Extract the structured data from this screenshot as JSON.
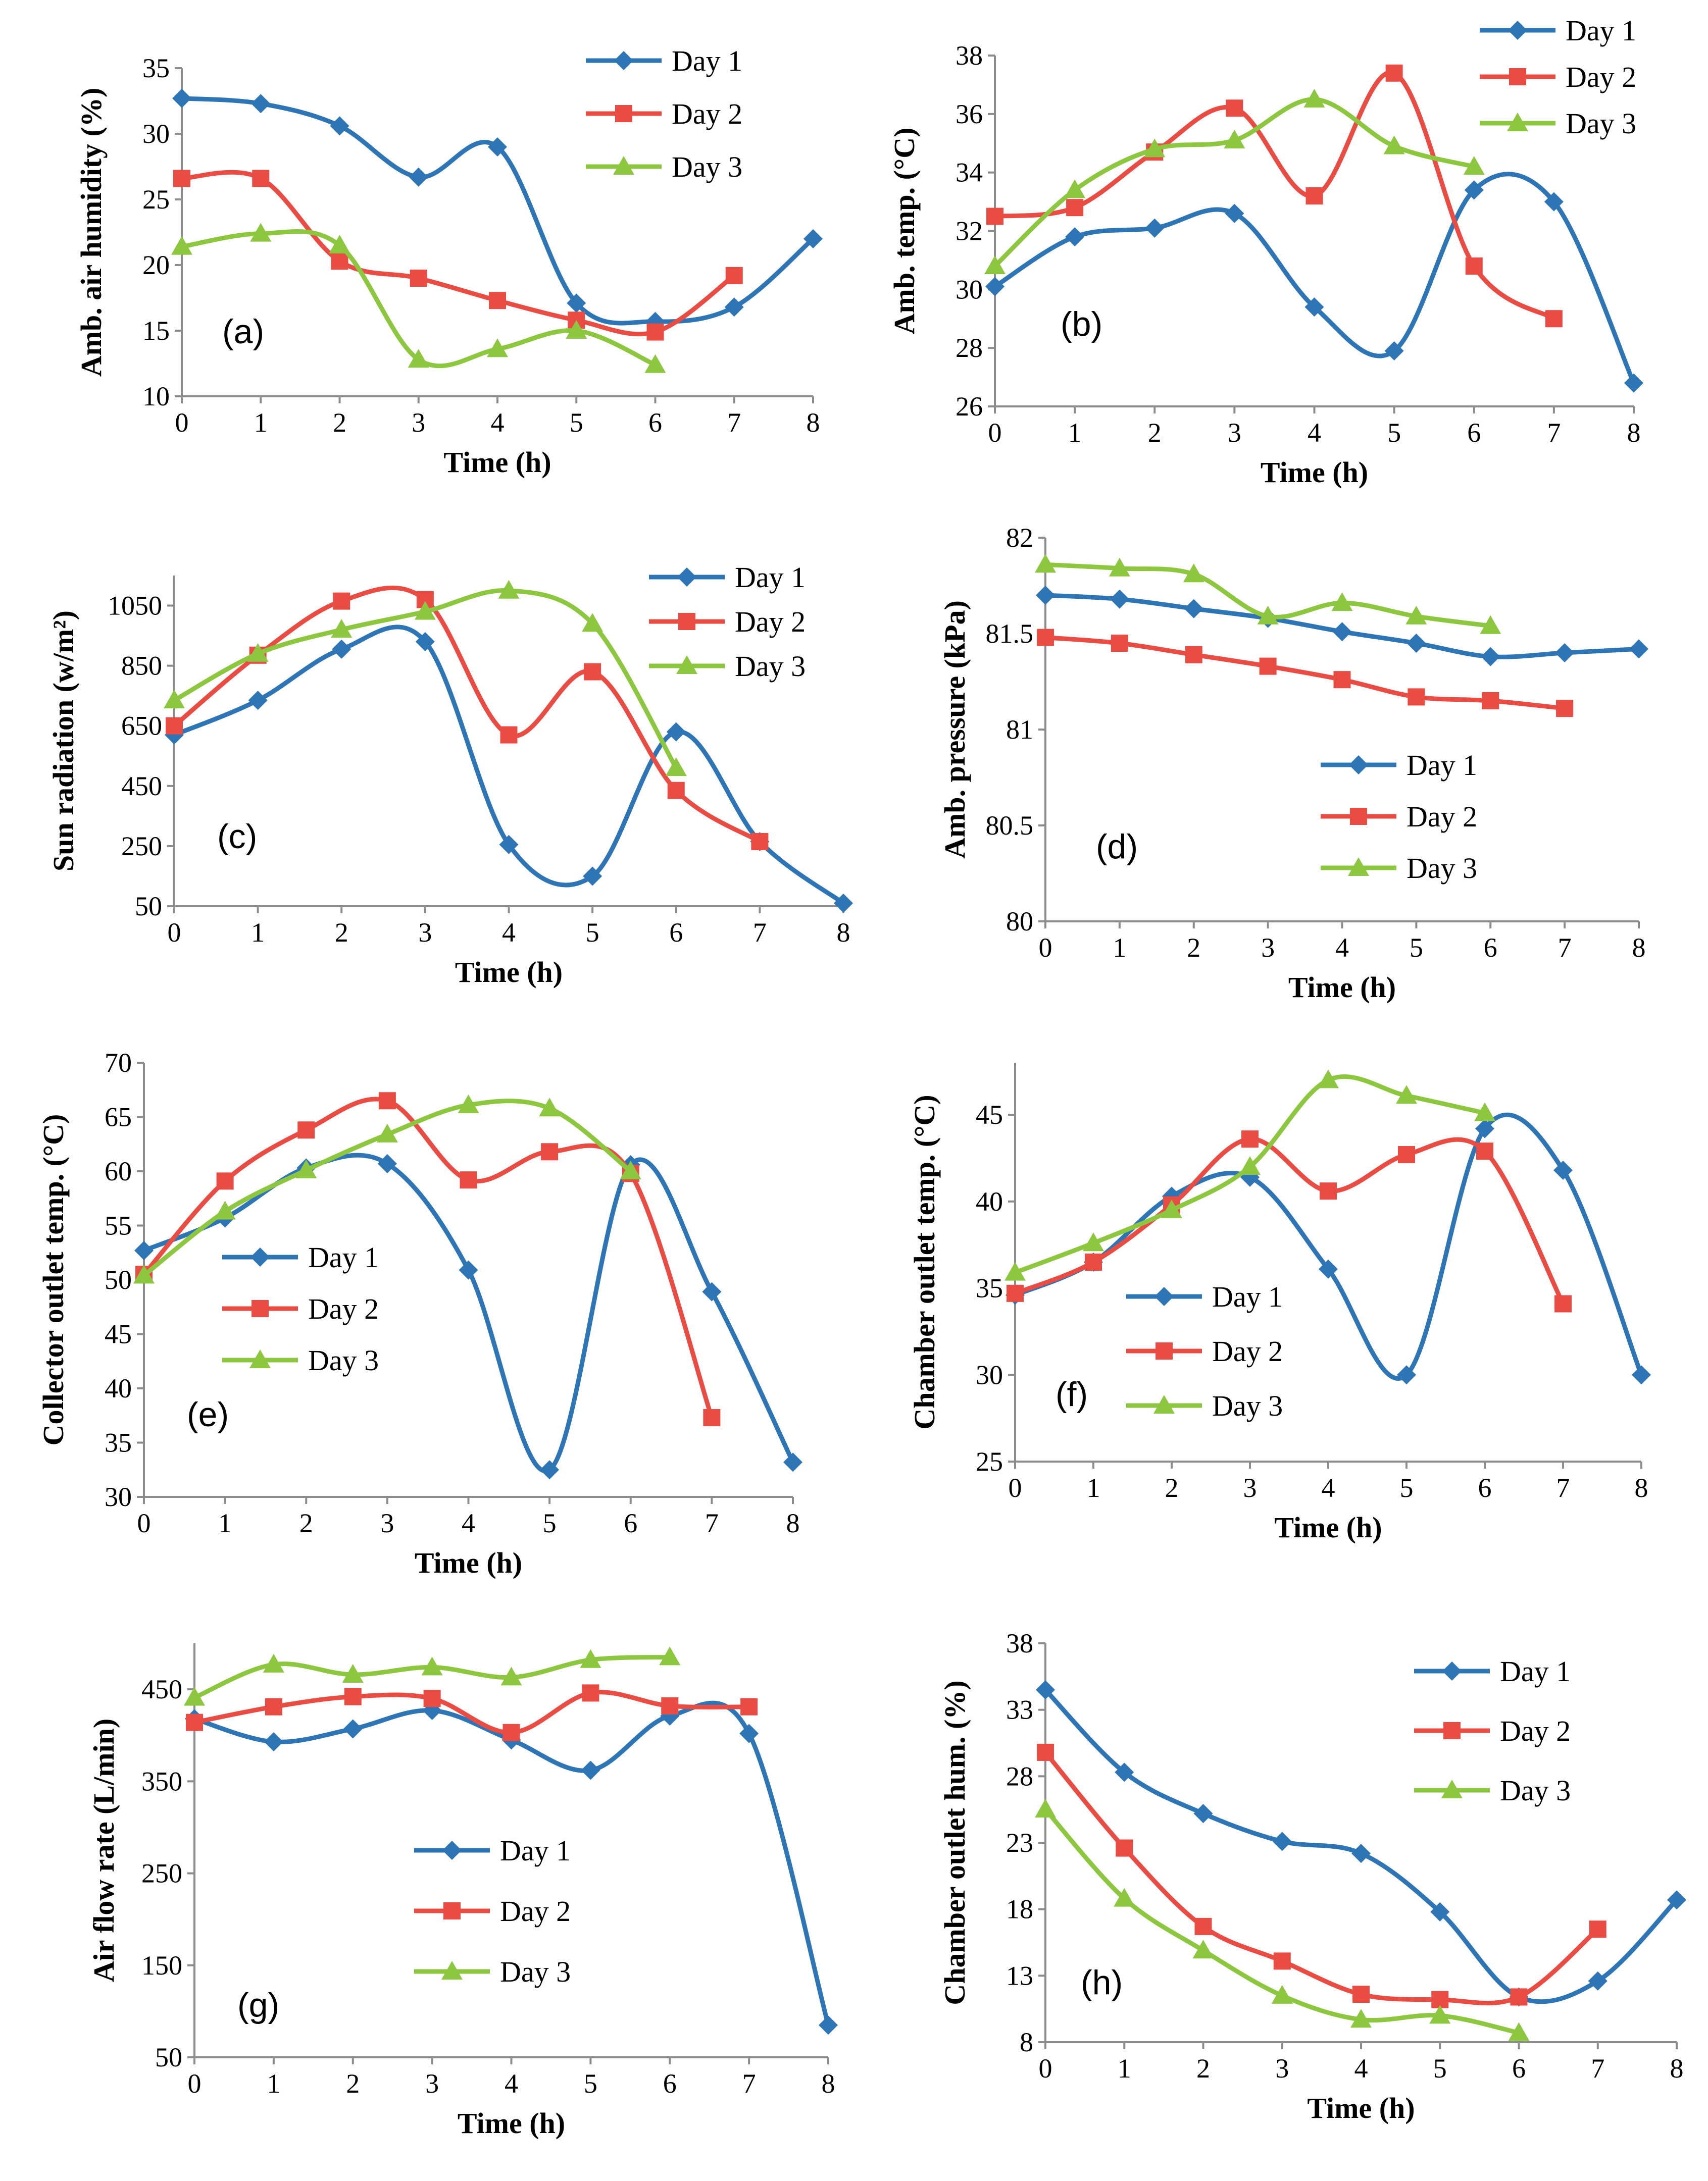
{
  "figure": {
    "series_names": [
      "Day 1",
      "Day 2",
      "Day 3"
    ],
    "colors": {
      "Day 1": "#2e75b6",
      "Day 2": "#e84c43",
      "Day 3": "#8dc63f"
    },
    "markers": {
      "Day 1": "diamond",
      "Day 2": "square",
      "Day 3": "triangle"
    }
  },
  "chart_data": [
    {
      "id": "a",
      "type": "line",
      "panel_label": "(a)",
      "xlabel": "Time (h)",
      "ylabel": "Amb. air humidity (%)",
      "xlim": [
        0,
        8
      ],
      "ylim": [
        10,
        35
      ],
      "xticks": [
        0,
        1,
        2,
        3,
        4,
        5,
        6,
        7,
        8
      ],
      "yticks": [
        10,
        15,
        20,
        25,
        30,
        35
      ],
      "ytick_labels": [
        "10",
        "15",
        "20",
        "25",
        "30",
        "35"
      ],
      "legend": "top-right",
      "series": [
        {
          "name": "Day 1",
          "x": [
            0,
            1,
            2,
            3,
            4,
            5,
            6,
            7,
            8
          ],
          "values": [
            32.7,
            32.3,
            30.6,
            26.7,
            29.0,
            17.1,
            15.7,
            16.8,
            22.0
          ]
        },
        {
          "name": "Day 2",
          "x": [
            0,
            1,
            2,
            3,
            4,
            5,
            6,
            7
          ],
          "values": [
            26.6,
            26.6,
            20.3,
            19.0,
            17.3,
            15.8,
            14.9,
            19.2
          ]
        },
        {
          "name": "Day 3",
          "x": [
            0,
            1,
            2,
            3,
            4,
            5,
            6
          ],
          "values": [
            21.4,
            22.4,
            21.5,
            12.8,
            13.6,
            15.0,
            12.4
          ]
        }
      ]
    },
    {
      "id": "b",
      "type": "line",
      "panel_label": "(b)",
      "xlabel": "Time (h)",
      "ylabel": "Amb. temp. (°C)",
      "xlim": [
        0,
        8
      ],
      "ylim": [
        26,
        38
      ],
      "xticks": [
        0,
        1,
        2,
        3,
        4,
        5,
        6,
        7,
        8
      ],
      "yticks": [
        26,
        28,
        30,
        32,
        34,
        36,
        38
      ],
      "ytick_labels": [
        "26",
        "28",
        "30",
        "32",
        "34",
        "36",
        "38"
      ],
      "legend": "top-right",
      "series": [
        {
          "name": "Day 1",
          "x": [
            0,
            1,
            2,
            3,
            4,
            5,
            6,
            7,
            8
          ],
          "values": [
            30.1,
            31.8,
            32.1,
            32.6,
            29.4,
            27.9,
            33.4,
            33.0,
            26.8
          ]
        },
        {
          "name": "Day 2",
          "x": [
            0,
            1,
            2,
            3,
            4,
            5,
            6,
            7
          ],
          "values": [
            32.5,
            32.8,
            34.7,
            36.2,
            33.2,
            37.4,
            30.8,
            29.0
          ]
        },
        {
          "name": "Day 3",
          "x": [
            0,
            1,
            2,
            3,
            4,
            5,
            6
          ],
          "values": [
            30.8,
            33.4,
            34.8,
            35.1,
            36.5,
            34.9,
            34.2
          ]
        }
      ]
    },
    {
      "id": "c",
      "type": "line",
      "panel_label": "(c)",
      "xlabel": "Time (h)",
      "ylabel": "Sun radiation (w/m²)",
      "xlim": [
        0,
        8
      ],
      "ylim": [
        50,
        1150
      ],
      "xticks": [
        0,
        1,
        2,
        3,
        4,
        5,
        6,
        7,
        8
      ],
      "yticks": [
        50,
        250,
        450,
        650,
        850,
        1050
      ],
      "ytick_labels": [
        "50",
        "250",
        "450",
        "650",
        "850",
        "1050"
      ],
      "legend": "top-right",
      "series": [
        {
          "name": "Day 1",
          "x": [
            0,
            1,
            2,
            3,
            4,
            5,
            6,
            7,
            8
          ],
          "values": [
            620,
            735,
            905,
            930,
            255,
            150,
            630,
            265,
            60
          ]
        },
        {
          "name": "Day 2",
          "x": [
            0,
            1,
            2,
            3,
            4,
            5,
            6,
            7
          ],
          "values": [
            650,
            885,
            1065,
            1070,
            620,
            830,
            435,
            265
          ]
        },
        {
          "name": "Day 3",
          "x": [
            0,
            1,
            2,
            3,
            4,
            5,
            6
          ],
          "values": [
            735,
            890,
            970,
            1030,
            1100,
            990,
            510
          ]
        }
      ]
    },
    {
      "id": "d",
      "type": "line",
      "panel_label": "(d)",
      "xlabel": "Time (h)",
      "ylabel": "Amb. pressure (kPa)",
      "xlim": [
        0,
        8
      ],
      "ylim": [
        80,
        82
      ],
      "xticks": [
        0,
        1,
        2,
        3,
        4,
        5,
        6,
        7,
        8
      ],
      "yticks": [
        80,
        80.5,
        81,
        81.5,
        82
      ],
      "ytick_labels": [
        "80",
        "80.5",
        "81",
        "81.5",
        "82"
      ],
      "legend": "center",
      "series": [
        {
          "name": "Day 1",
          "x": [
            0,
            1,
            2,
            3,
            4,
            5,
            6,
            7,
            8
          ],
          "values": [
            81.7,
            81.68,
            81.63,
            81.58,
            81.51,
            81.45,
            81.38,
            81.4,
            81.42
          ]
        },
        {
          "name": "Day 2",
          "x": [
            0,
            1,
            2,
            3,
            4,
            5,
            6,
            7
          ],
          "values": [
            81.48,
            81.45,
            81.39,
            81.33,
            81.26,
            81.17,
            81.15,
            81.11
          ]
        },
        {
          "name": "Day 3",
          "x": [
            0,
            1,
            2,
            3,
            4,
            5,
            6
          ],
          "values": [
            81.86,
            81.84,
            81.81,
            81.59,
            81.66,
            81.59,
            81.54
          ]
        }
      ]
    },
    {
      "id": "e",
      "type": "line",
      "panel_label": "(e)",
      "xlabel": "Time (h)",
      "ylabel": "Collector outlet temp. (°C)",
      "xlim": [
        0,
        8
      ],
      "ylim": [
        30,
        70
      ],
      "xticks": [
        0,
        1,
        2,
        3,
        4,
        5,
        6,
        7,
        8
      ],
      "yticks": [
        30,
        35,
        40,
        45,
        50,
        55,
        60,
        65,
        70
      ],
      "ytick_labels": [
        "30",
        "35",
        "40",
        "45",
        "50",
        "55",
        "60",
        "65",
        "70"
      ],
      "legend": "center-left",
      "series": [
        {
          "name": "Day 1",
          "x": [
            0,
            1,
            2,
            3,
            4,
            5,
            6,
            7,
            8
          ],
          "values": [
            52.7,
            55.7,
            60.3,
            60.7,
            50.9,
            32.5,
            60.6,
            48.9,
            33.2
          ]
        },
        {
          "name": "Day 2",
          "x": [
            0,
            1,
            2,
            3,
            4,
            5,
            6,
            7
          ],
          "values": [
            50.5,
            59.1,
            63.8,
            66.5,
            59.2,
            61.8,
            59.8,
            37.3
          ]
        },
        {
          "name": "Day 3",
          "x": [
            0,
            1,
            2,
            3,
            4,
            5,
            6
          ],
          "values": [
            50.4,
            56.3,
            60.1,
            63.4,
            66.1,
            65.8,
            60.0
          ]
        }
      ]
    },
    {
      "id": "f",
      "type": "line",
      "panel_label": "(f)",
      "xlabel": "Time (h)",
      "ylabel": "Chamber outlet temp. (°C)",
      "xlim": [
        0,
        8
      ],
      "ylim": [
        25,
        48
      ],
      "xticks": [
        0,
        1,
        2,
        3,
        4,
        5,
        6,
        7,
        8
      ],
      "yticks": [
        25,
        30,
        35,
        40,
        45
      ],
      "ytick_labels": [
        "25",
        "30",
        "35",
        "40",
        "45"
      ],
      "legend": "center",
      "series": [
        {
          "name": "Day 1",
          "x": [
            0,
            1,
            2,
            3,
            4,
            5,
            6,
            7,
            8
          ],
          "values": [
            34.6,
            36.5,
            40.3,
            41.4,
            36.1,
            30.0,
            44.2,
            41.8,
            30.0
          ]
        },
        {
          "name": "Day 2",
          "x": [
            0,
            1,
            2,
            3,
            4,
            5,
            6,
            7
          ],
          "values": [
            34.7,
            36.5,
            39.8,
            43.6,
            40.6,
            42.7,
            42.9,
            34.1
          ]
        },
        {
          "name": "Day 3",
          "x": [
            0,
            1,
            2,
            3,
            4,
            5,
            6
          ],
          "values": [
            35.9,
            37.6,
            39.5,
            42.0,
            47.0,
            46.1,
            45.1
          ]
        }
      ]
    },
    {
      "id": "g",
      "type": "line",
      "panel_label": "(g)",
      "xlabel": "Time (h)",
      "ylabel": "Air flow rate (L/min)",
      "xlim": [
        0,
        8
      ],
      "ylim": [
        50,
        500
      ],
      "xticks": [
        0,
        1,
        2,
        3,
        4,
        5,
        6,
        7,
        8
      ],
      "yticks": [
        50,
        150,
        250,
        350,
        450
      ],
      "ytick_labels": [
        "50",
        "150",
        "250",
        "350",
        "450"
      ],
      "legend": "center",
      "series": [
        {
          "name": "Day 1",
          "x": [
            0,
            1,
            2,
            3,
            4,
            5,
            6,
            7,
            8
          ],
          "values": [
            418,
            393,
            407,
            427,
            395,
            362,
            421,
            402,
            85
          ]
        },
        {
          "name": "Day 2",
          "x": [
            0,
            1,
            2,
            3,
            4,
            5,
            6,
            7
          ],
          "values": [
            414,
            431,
            442,
            440,
            403,
            446,
            432,
            431
          ]
        },
        {
          "name": "Day 3",
          "x": [
            0,
            1,
            2,
            3,
            4,
            5,
            6
          ],
          "values": [
            441,
            477,
            466,
            474,
            463,
            482,
            485
          ]
        }
      ]
    },
    {
      "id": "h",
      "type": "line",
      "panel_label": "(h)",
      "xlabel": "Time (h)",
      "ylabel": "Chamber outlet hum. (%)",
      "xlim": [
        0,
        8
      ],
      "ylim": [
        8,
        38
      ],
      "xticks": [
        0,
        1,
        2,
        3,
        4,
        5,
        6,
        7,
        8
      ],
      "yticks": [
        8,
        13,
        18,
        23,
        28,
        33,
        38
      ],
      "ytick_labels": [
        "8",
        "13",
        "18",
        "23",
        "28",
        "33",
        "38"
      ],
      "legend": "top-left",
      "series": [
        {
          "name": "Day 1",
          "x": [
            0,
            1,
            2,
            3,
            4,
            5,
            6,
            7,
            8
          ],
          "values": [
            34.5,
            28.3,
            25.2,
            23.1,
            22.2,
            17.8,
            11.4,
            12.6,
            18.7
          ]
        },
        {
          "name": "Day 2",
          "x": [
            0,
            1,
            2,
            3,
            4,
            5,
            6,
            7
          ],
          "values": [
            29.8,
            22.6,
            16.7,
            14.1,
            11.6,
            11.2,
            11.4,
            16.5
          ]
        },
        {
          "name": "Day 3",
          "x": [
            0,
            1,
            2,
            3,
            4,
            5,
            6
          ],
          "values": [
            25.5,
            18.8,
            14.9,
            11.5,
            9.7,
            10.0,
            8.7
          ]
        }
      ]
    }
  ]
}
